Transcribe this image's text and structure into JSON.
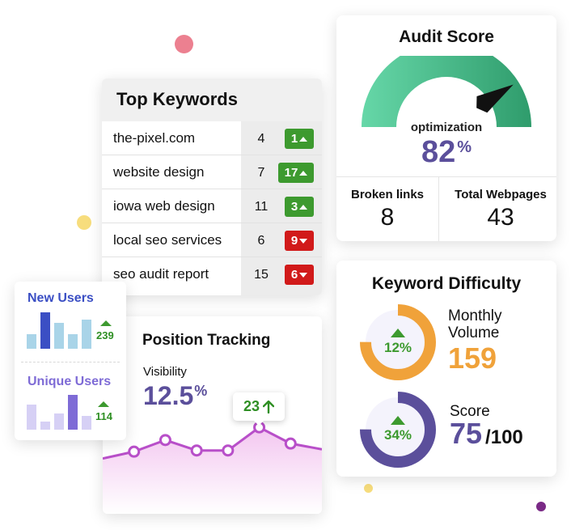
{
  "colors": {
    "purple": "#5b4f9b",
    "green": "#3d9a2f",
    "red": "#d11a1a",
    "orange": "#f0a23a",
    "gauge_green": "#3bbf8a",
    "line_purple": "#b84fc9",
    "bar_blue": "#3b4fc4",
    "bar_lightblue": "#a9d4e8",
    "bar_purple": "#7e6bd6",
    "bar_lavender": "#d6d0f5",
    "dot_pink": "#ec8090",
    "dot_yellow": "#f7dd7d",
    "dot_purple": "#7a2a86"
  },
  "top_keywords": {
    "title": "Top Keywords",
    "rows": [
      {
        "keyword": "the-pixel.com",
        "position": "4",
        "change": "1",
        "direction": "up"
      },
      {
        "keyword": "website design",
        "position": "7",
        "change": "17",
        "direction": "up"
      },
      {
        "keyword": "iowa web design",
        "position": "11",
        "change": "3",
        "direction": "up"
      },
      {
        "keyword": "local seo services",
        "position": "6",
        "change": "9",
        "direction": "down"
      },
      {
        "keyword": "seo audit report",
        "position": "15",
        "change": "6",
        "direction": "down"
      }
    ]
  },
  "audit_score": {
    "title": "Audit Score",
    "gauge_label": "optimization",
    "score": "82",
    "score_unit": "%",
    "score_value": 82,
    "broken_links_label": "Broken links",
    "broken_links": "8",
    "total_webpages_label": "Total Webpages",
    "total_webpages": "43"
  },
  "keyword_difficulty": {
    "title": "Keyword Difficulty",
    "volume_pct": "12%",
    "volume_fraction": 0.75,
    "volume_label_line1": "Monthly",
    "volume_label_line2": "Volume",
    "volume_value": "159",
    "score_pct": "34%",
    "score_fraction": 0.75,
    "score_label": "Score",
    "score_value": "75",
    "score_max": "/100"
  },
  "users": {
    "new_users_label": "New Users",
    "new_users_change": "239",
    "new_users_bars": [
      0.4,
      1.0,
      0.72,
      0.4,
      0.8
    ],
    "unique_users_label": "Unique Users",
    "unique_users_change": "114",
    "unique_users_bars": [
      0.72,
      0.24,
      0.46,
      1.0,
      0.4
    ]
  },
  "position_tracking": {
    "title": "Position Tracking",
    "visibility_label": "Visibility",
    "visibility_value": "12.5",
    "visibility_unit": "%",
    "tooltip_value": "23",
    "series": [
      4.2,
      3.6,
      2.6,
      3.5,
      3.5,
      1.5,
      2.9,
      3.4
    ],
    "marked_points": [
      1,
      2,
      3,
      4,
      5,
      6
    ]
  }
}
